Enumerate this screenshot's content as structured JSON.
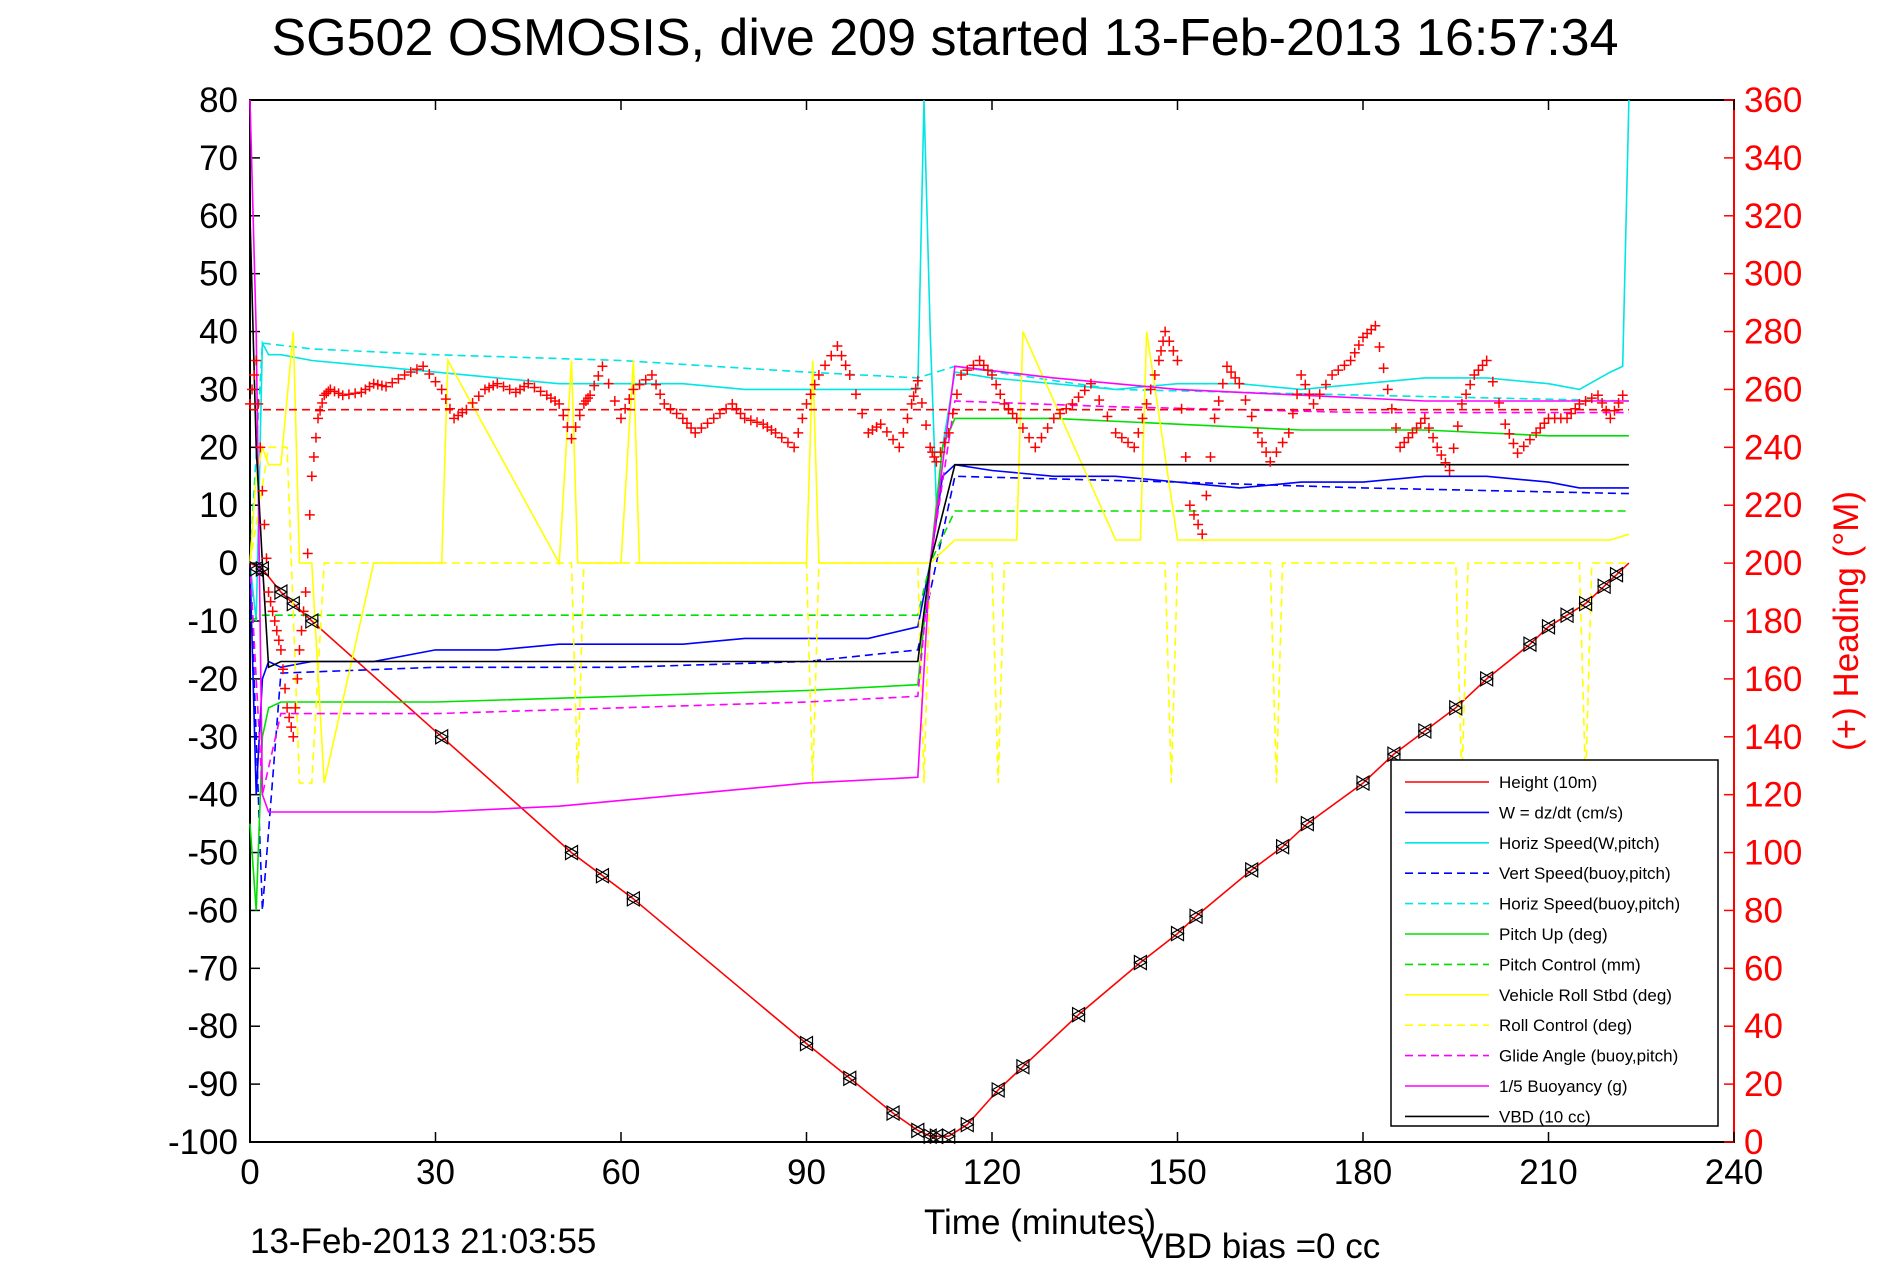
{
  "chart_data": {
    "type": "line",
    "title": "SG502 OSMOSIS, dive 209 started 13-Feb-2013 16:57:34",
    "xlabel": "Time (minutes)",
    "ylabel_right": "(+) Heading (°M)",
    "footer_date": "13-Feb-2013 21:03:55",
    "footer_vbd": "VBD bias =0 cc",
    "xlim": [
      0,
      240
    ],
    "ylim": [
      -100,
      80
    ],
    "ylim_right": [
      0,
      360
    ],
    "x_ticks": [
      "0",
      "30",
      "60",
      "90",
      "120",
      "150",
      "180",
      "210",
      "240"
    ],
    "y_ticks": [
      "80",
      "70",
      "60",
      "50",
      "40",
      "30",
      "20",
      "10",
      "0",
      "-10",
      "-20",
      "-30",
      "-40",
      "-50",
      "-60",
      "-70",
      "-80",
      "-90",
      "-100"
    ],
    "y_right_ticks": [
      "360",
      "340",
      "320",
      "300",
      "280",
      "260",
      "240",
      "220",
      "200",
      "180",
      "160",
      "140",
      "120",
      "100",
      "80",
      "60",
      "40",
      "20",
      "0"
    ],
    "legend_position": "lower-right",
    "colors": {
      "height": "#ff0000",
      "w": "#0000ff",
      "horiz": "#00e5e5",
      "pitch": "#00e000",
      "roll": "#ffff00",
      "glide": "#ff00ff",
      "buoy": "#ff00ff",
      "vbd": "#000000",
      "heading": "#ff0000"
    },
    "series": [
      {
        "name": "Height (10m)",
        "color": "#ff0000",
        "dash": false,
        "x": [
          0,
          2,
          5,
          10,
          31,
          52,
          57,
          62,
          90,
          97,
          104,
          108,
          110,
          111,
          113,
          116,
          121,
          125,
          134,
          144,
          150,
          153,
          162,
          167,
          171,
          180,
          185,
          190,
          195,
          200,
          207,
          210,
          213,
          216,
          219,
          221,
          223
        ],
        "y": [
          0,
          -1,
          -5,
          -10,
          -30,
          -50,
          -54,
          -58,
          -83,
          -89,
          -95,
          -98,
          -99,
          -99,
          -99,
          -97,
          -91,
          -87,
          -78,
          -69,
          -64,
          -61,
          -53,
          -49,
          -45,
          -38,
          -33,
          -29,
          -25,
          -20,
          -14,
          -11,
          -9,
          -7,
          -4,
          -2,
          0
        ]
      },
      {
        "name": "W = dz/dt (cm/s)",
        "color": "#0000ff",
        "dash": false,
        "x": [
          0,
          1,
          2,
          3,
          5,
          10,
          20,
          30,
          40,
          50,
          60,
          70,
          80,
          90,
          100,
          108,
          110,
          112,
          114,
          120,
          130,
          140,
          150,
          160,
          170,
          180,
          190,
          200,
          210,
          215,
          220,
          223
        ],
        "y": [
          0,
          -40,
          -20,
          -17,
          -18,
          -17,
          -17,
          -15,
          -15,
          -14,
          -14,
          -14,
          -13,
          -13,
          -13,
          -11,
          0,
          15,
          17,
          16,
          15,
          15,
          14,
          13,
          14,
          14,
          15,
          15,
          14,
          13,
          13,
          13
        ]
      },
      {
        "name": "Horiz Speed(W,pitch)",
        "color": "#00e5e5",
        "dash": false,
        "x": [
          0,
          1,
          2,
          3,
          5,
          10,
          20,
          30,
          40,
          50,
          60,
          70,
          80,
          90,
          100,
          108,
          109,
          110,
          111,
          112,
          114,
          120,
          130,
          140,
          150,
          160,
          170,
          180,
          190,
          200,
          210,
          215,
          220,
          222,
          223
        ],
        "y": [
          0,
          -10,
          38,
          36,
          36,
          35,
          34,
          33,
          32,
          31,
          31,
          31,
          30,
          30,
          30,
          30,
          80,
          40,
          10,
          20,
          33,
          32,
          31,
          30,
          31,
          31,
          30,
          31,
          32,
          32,
          31,
          30,
          33,
          34,
          80
        ]
      },
      {
        "name": "Vert Speed(buoy,pitch)",
        "color": "#0000ff",
        "dash": true,
        "x": [
          0,
          2,
          5,
          30,
          60,
          90,
          108,
          112,
          114,
          150,
          180,
          223
        ],
        "y": [
          0,
          -60,
          -19,
          -18,
          -18,
          -17,
          -15,
          5,
          15,
          14,
          13,
          12
        ]
      },
      {
        "name": "Horiz Speed(buoy,pitch)",
        "color": "#00e5e5",
        "dash": true,
        "x": [
          0,
          2,
          10,
          30,
          60,
          90,
          108,
          114,
          140,
          180,
          223
        ],
        "y": [
          0,
          38,
          37,
          36,
          35,
          33,
          32,
          34,
          30,
          29,
          28
        ]
      },
      {
        "name": "Pitch Up (deg)",
        "color": "#00e000",
        "dash": false,
        "x": [
          0,
          1,
          2,
          3,
          5,
          10,
          30,
          60,
          90,
          108,
          110,
          112,
          114,
          130,
          150,
          170,
          190,
          210,
          223
        ],
        "y": [
          -45,
          -60,
          -30,
          -25,
          -24,
          -24,
          -24,
          -23,
          -22,
          -21,
          0,
          20,
          25,
          25,
          24,
          23,
          23,
          22,
          22
        ]
      },
      {
        "name": "Pitch Control (mm)",
        "color": "#00e000",
        "dash": true,
        "x": [
          0,
          2,
          5,
          108,
          110,
          114,
          223
        ],
        "y": [
          -10,
          -9,
          -9,
          -9,
          0,
          9,
          9
        ]
      },
      {
        "name": "Vehicle Roll Stbd (deg)",
        "color": "#ffff00",
        "dash": false,
        "x": [
          0,
          1,
          2,
          3,
          5,
          7,
          8,
          10,
          12,
          20,
          31,
          32,
          50,
          52,
          53,
          60,
          62,
          63,
          90,
          91,
          92,
          108,
          110,
          112,
          114,
          120,
          124,
          125,
          140,
          144,
          145,
          150,
          152,
          160,
          170,
          180,
          190,
          200,
          210,
          215,
          220,
          223
        ],
        "y": [
          0,
          15,
          20,
          17,
          17,
          40,
          0,
          0,
          -38,
          0,
          0,
          35,
          0,
          35,
          0,
          0,
          35,
          0,
          0,
          35,
          0,
          0,
          0,
          2,
          4,
          4,
          4,
          40,
          4,
          4,
          40,
          4,
          4,
          4,
          4,
          4,
          4,
          4,
          4,
          4,
          4,
          5
        ]
      },
      {
        "name": "Roll Control (deg)",
        "color": "#ffff00",
        "dash": true,
        "x": [
          0,
          3,
          6,
          8,
          10,
          12,
          20,
          52,
          53,
          54,
          90,
          91,
          92,
          108,
          109,
          110,
          120,
          121,
          122,
          148,
          149,
          150,
          165,
          166,
          167,
          195,
          196,
          197,
          215,
          216,
          217,
          223
        ],
        "y": [
          0,
          20,
          20,
          -38,
          -38,
          0,
          0,
          0,
          -38,
          0,
          0,
          -38,
          0,
          0,
          -38,
          0,
          0,
          -38,
          0,
          0,
          -38,
          0,
          0,
          -38,
          0,
          0,
          -38,
          0,
          0,
          -38,
          0,
          0
        ]
      },
      {
        "name": "Glide Angle (buoy,pitch)",
        "color": "#ff00ff",
        "dash": true,
        "x": [
          0,
          2,
          5,
          30,
          60,
          90,
          108,
          110,
          114,
          140,
          180,
          223
        ],
        "y": [
          0,
          -40,
          -26,
          -26,
          -25,
          -24,
          -23,
          0,
          28,
          27,
          26,
          26
        ]
      },
      {
        "name": "1/5 Buoyancy (g)",
        "color": "#ff00ff",
        "dash": false,
        "x": [
          0,
          1,
          2,
          3,
          10,
          30,
          50,
          70,
          90,
          108,
          110,
          114,
          130,
          150,
          170,
          190,
          210,
          223
        ],
        "y": [
          80,
          40,
          -40,
          -43,
          -43,
          -43,
          -42,
          -40,
          -38,
          -37,
          0,
          34,
          32,
          30,
          29,
          28,
          28,
          28
        ]
      },
      {
        "name": "VBD (10 cc)",
        "color": "#000000",
        "dash": false,
        "x": [
          0,
          1,
          2,
          3,
          5,
          108,
          110,
          114,
          223
        ],
        "y": [
          60,
          20,
          0,
          -18,
          -17,
          -17,
          0,
          17,
          17
        ]
      }
    ],
    "heading_target": 253,
    "heading_points": {
      "name": "Heading",
      "color": "#ff0000",
      "x": [
        0,
        1,
        2,
        3,
        4,
        5,
        6,
        7,
        8,
        9,
        10,
        11,
        12,
        13,
        15,
        18,
        20,
        22,
        25,
        28,
        31,
        33,
        35,
        38,
        40,
        43,
        45,
        48,
        50,
        52,
        54,
        55,
        57,
        60,
        62,
        65,
        67,
        70,
        72,
        75,
        78,
        80,
        83,
        85,
        88,
        90,
        92,
        95,
        97,
        100,
        102,
        105,
        107,
        108,
        110,
        111,
        113,
        115,
        118,
        120,
        122,
        124,
        127,
        130,
        133,
        136,
        140,
        143,
        145,
        147,
        148,
        150,
        152,
        154,
        156,
        158,
        160,
        163,
        165,
        168,
        170,
        172,
        175,
        178,
        180,
        182,
        184,
        186,
        188,
        190,
        192,
        194,
        196,
        198,
        200,
        203,
        205,
        208,
        210,
        213,
        215,
        218,
        220,
        222
      ],
      "y": [
        255,
        270,
        225,
        190,
        180,
        170,
        150,
        140,
        170,
        190,
        230,
        250,
        258,
        260,
        258,
        259,
        262,
        261,
        265,
        268,
        260,
        250,
        253,
        260,
        262,
        259,
        262,
        258,
        255,
        243,
        255,
        258,
        268,
        250,
        260,
        265,
        255,
        250,
        245,
        250,
        255,
        250,
        248,
        245,
        240,
        255,
        265,
        275,
        265,
        245,
        248,
        240,
        255,
        263,
        240,
        235,
        245,
        265,
        270,
        265,
        255,
        250,
        240,
        250,
        255,
        262,
        245,
        240,
        255,
        270,
        280,
        270,
        220,
        210,
        250,
        268,
        262,
        245,
        235,
        245,
        265,
        255,
        265,
        270,
        278,
        282,
        260,
        240,
        245,
        250,
        240,
        232,
        255,
        265,
        270,
        248,
        238,
        245,
        250,
        250,
        255,
        258,
        250,
        258
      ]
    },
    "markers": {
      "x": [
        1,
        2,
        5,
        7,
        10,
        31,
        52,
        57,
        62,
        90,
        97,
        104,
        108,
        110,
        111,
        113,
        116,
        121,
        125,
        134,
        144,
        150,
        153,
        162,
        167,
        171,
        180,
        185,
        190,
        195,
        200,
        207,
        210,
        213,
        216,
        219,
        221
      ],
      "y": [
        -1,
        -1,
        -5,
        -7,
        -10,
        -30,
        -50,
        -54,
        -58,
        -83,
        -89,
        -95,
        -98,
        -99,
        -99,
        -99,
        -97,
        -91,
        -87,
        -78,
        -69,
        -64,
        -61,
        -53,
        -49,
        -45,
        -38,
        -33,
        -29,
        -25,
        -20,
        -14,
        -11,
        -9,
        -7,
        -4,
        -2
      ]
    }
  }
}
